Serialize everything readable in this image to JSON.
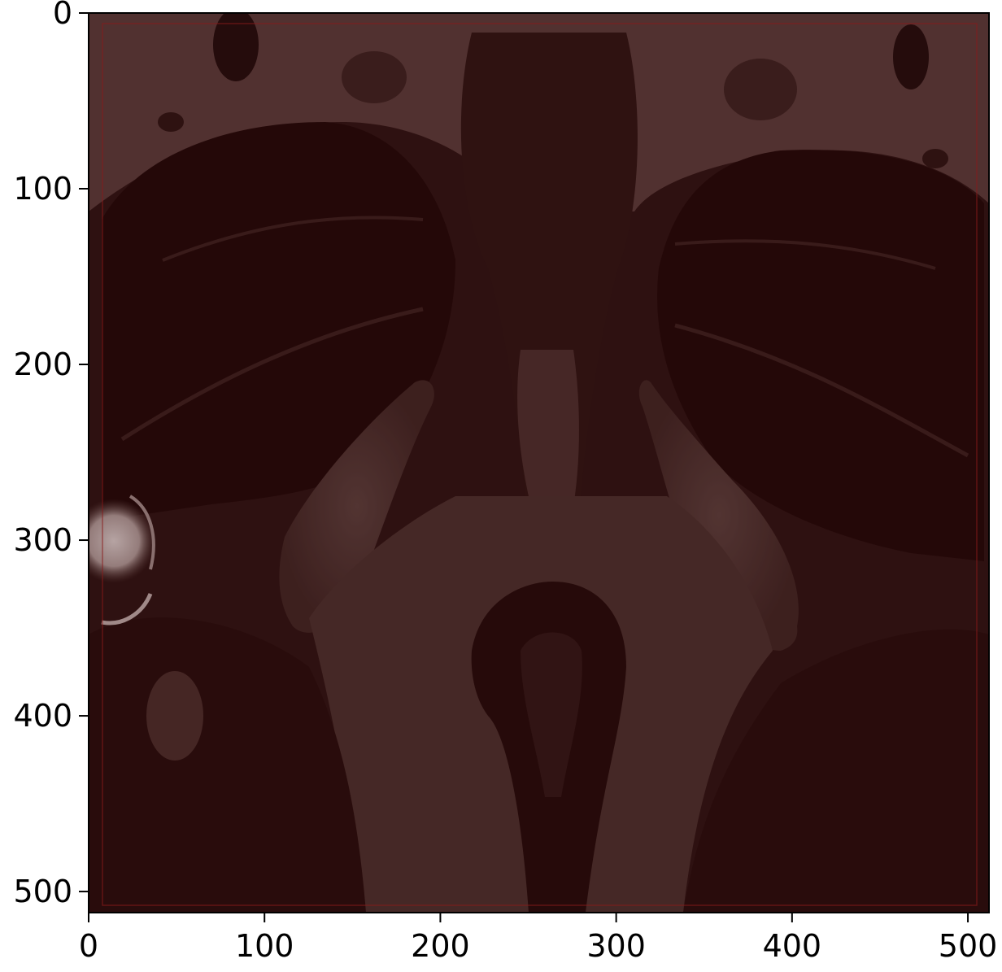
{
  "figure": {
    "type": "image-with-axes",
    "subject": "MRI slice",
    "colors": {
      "axes_frame": "#000000",
      "background_tissue": "#4a3532",
      "overlay_tint": "#3a0606",
      "bright_spot": "#d9d3d2",
      "overlay_box": "#8a1a1a"
    }
  },
  "chart_data": {
    "type": "image",
    "xlabel": "",
    "ylabel": "",
    "xlim": [
      0,
      512
    ],
    "ylim": [
      512,
      0
    ],
    "x_ticks": [
      {
        "value": 0,
        "label": "0"
      },
      {
        "value": 100,
        "label": "100"
      },
      {
        "value": 200,
        "label": "200"
      },
      {
        "value": 300,
        "label": "300"
      },
      {
        "value": 400,
        "label": "400"
      },
      {
        "value": 500,
        "label": "500"
      }
    ],
    "y_ticks": [
      {
        "value": 0,
        "label": "0"
      },
      {
        "value": 100,
        "label": "100"
      },
      {
        "value": 200,
        "label": "200"
      },
      {
        "value": 300,
        "label": "300"
      },
      {
        "value": 400,
        "label": "400"
      },
      {
        "value": 500,
        "label": "500"
      }
    ],
    "grid": false,
    "overlay_box": {
      "x0": 8,
      "y0": 6,
      "x1": 505,
      "y1": 507
    }
  }
}
